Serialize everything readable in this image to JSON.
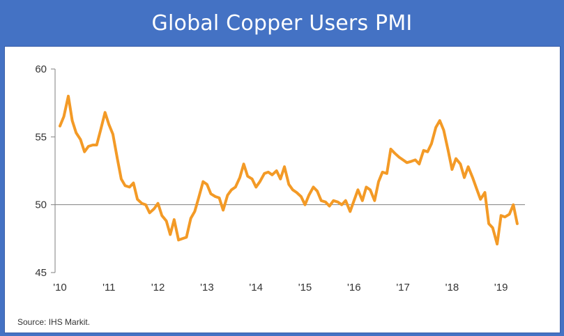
{
  "header": {
    "title": "Global Copper Users PMI"
  },
  "source": "Source: IHS Markit.",
  "colors": {
    "line": "#f39a26",
    "axis": "#7f7f7f",
    "background": "#4472c4",
    "panel": "#ffffff"
  },
  "chart_data": {
    "type": "line",
    "title": "Global Copper Users PMI",
    "xlabel": "",
    "ylabel": "",
    "ylim": [
      45,
      60
    ],
    "yticks": [
      60,
      55,
      50,
      45
    ],
    "xlim": [
      2010.0,
      2019.7
    ],
    "xticks": [
      {
        "x": 2010,
        "label": "'10"
      },
      {
        "x": 2011,
        "label": "'11"
      },
      {
        "x": 2012,
        "label": "'12"
      },
      {
        "x": 2013,
        "label": "'13"
      },
      {
        "x": 2014,
        "label": "'14"
      },
      {
        "x": 2015,
        "label": "'15"
      },
      {
        "x": 2016,
        "label": "'16"
      },
      {
        "x": 2017,
        "label": "'17"
      },
      {
        "x": 2018,
        "label": "'18"
      },
      {
        "x": 2019,
        "label": "'19"
      }
    ],
    "reference_line": 50,
    "grid": false,
    "series": [
      {
        "points": [
          [
            2010.0,
            55.8
          ],
          [
            2010.08,
            56.5
          ],
          [
            2010.17,
            58.0
          ],
          [
            2010.25,
            56.2
          ],
          [
            2010.33,
            55.3
          ],
          [
            2010.42,
            54.8
          ],
          [
            2010.5,
            53.9
          ],
          [
            2010.58,
            54.3
          ],
          [
            2010.67,
            54.4
          ],
          [
            2010.75,
            54.4
          ],
          [
            2010.83,
            55.5
          ],
          [
            2010.92,
            56.8
          ],
          [
            2011.0,
            55.9
          ],
          [
            2011.08,
            55.2
          ],
          [
            2011.17,
            53.4
          ],
          [
            2011.25,
            51.9
          ],
          [
            2011.33,
            51.4
          ],
          [
            2011.42,
            51.3
          ],
          [
            2011.5,
            51.6
          ],
          [
            2011.58,
            50.4
          ],
          [
            2011.67,
            50.1
          ],
          [
            2011.75,
            50.0
          ],
          [
            2011.83,
            49.4
          ],
          [
            2011.92,
            49.7
          ],
          [
            2012.0,
            50.1
          ],
          [
            2012.08,
            49.2
          ],
          [
            2012.17,
            48.8
          ],
          [
            2012.25,
            47.8
          ],
          [
            2012.33,
            48.9
          ],
          [
            2012.42,
            47.4
          ],
          [
            2012.5,
            47.5
          ],
          [
            2012.58,
            47.6
          ],
          [
            2012.67,
            49.0
          ],
          [
            2012.75,
            49.5
          ],
          [
            2012.83,
            50.5
          ],
          [
            2012.92,
            51.7
          ],
          [
            2013.0,
            51.5
          ],
          [
            2013.08,
            50.8
          ],
          [
            2013.17,
            50.6
          ],
          [
            2013.25,
            50.5
          ],
          [
            2013.33,
            49.6
          ],
          [
            2013.42,
            50.7
          ],
          [
            2013.5,
            51.1
          ],
          [
            2013.58,
            51.3
          ],
          [
            2013.67,
            52.0
          ],
          [
            2013.75,
            53.0
          ],
          [
            2013.83,
            52.1
          ],
          [
            2013.92,
            51.9
          ],
          [
            2014.0,
            51.3
          ],
          [
            2014.08,
            51.7
          ],
          [
            2014.17,
            52.3
          ],
          [
            2014.25,
            52.4
          ],
          [
            2014.33,
            52.2
          ],
          [
            2014.42,
            52.5
          ],
          [
            2014.5,
            51.9
          ],
          [
            2014.58,
            52.8
          ],
          [
            2014.67,
            51.5
          ],
          [
            2014.75,
            51.1
          ],
          [
            2014.83,
            50.9
          ],
          [
            2014.92,
            50.6
          ],
          [
            2015.0,
            50.0
          ],
          [
            2015.08,
            50.7
          ],
          [
            2015.17,
            51.3
          ],
          [
            2015.25,
            51.0
          ],
          [
            2015.33,
            50.3
          ],
          [
            2015.42,
            50.2
          ],
          [
            2015.5,
            49.9
          ],
          [
            2015.58,
            50.3
          ],
          [
            2015.67,
            50.2
          ],
          [
            2015.75,
            50.0
          ],
          [
            2015.83,
            50.3
          ],
          [
            2015.92,
            49.5
          ],
          [
            2016.0,
            50.3
          ],
          [
            2016.08,
            51.1
          ],
          [
            2016.17,
            50.3
          ],
          [
            2016.25,
            51.3
          ],
          [
            2016.33,
            51.1
          ],
          [
            2016.42,
            50.3
          ],
          [
            2016.5,
            51.7
          ],
          [
            2016.58,
            52.4
          ],
          [
            2016.67,
            52.3
          ],
          [
            2016.75,
            54.1
          ],
          [
            2016.83,
            53.8
          ],
          [
            2016.92,
            53.5
          ],
          [
            2017.0,
            53.3
          ],
          [
            2017.08,
            53.1
          ],
          [
            2017.17,
            53.2
          ],
          [
            2017.25,
            53.3
          ],
          [
            2017.33,
            53.0
          ],
          [
            2017.42,
            54.0
          ],
          [
            2017.5,
            53.9
          ],
          [
            2017.58,
            54.5
          ],
          [
            2017.67,
            55.7
          ],
          [
            2017.75,
            56.2
          ],
          [
            2017.83,
            55.5
          ],
          [
            2017.92,
            54.0
          ],
          [
            2018.0,
            52.6
          ],
          [
            2018.08,
            53.4
          ],
          [
            2018.17,
            53.0
          ],
          [
            2018.25,
            52.0
          ],
          [
            2018.33,
            52.8
          ],
          [
            2018.42,
            52.0
          ],
          [
            2018.5,
            51.2
          ],
          [
            2018.58,
            50.4
          ],
          [
            2018.67,
            50.9
          ],
          [
            2018.75,
            48.6
          ],
          [
            2018.83,
            48.3
          ],
          [
            2018.92,
            47.1
          ],
          [
            2019.0,
            49.2
          ],
          [
            2019.08,
            49.1
          ],
          [
            2019.17,
            49.3
          ],
          [
            2019.25,
            50.0
          ],
          [
            2019.33,
            48.6
          ]
        ]
      }
    ]
  }
}
